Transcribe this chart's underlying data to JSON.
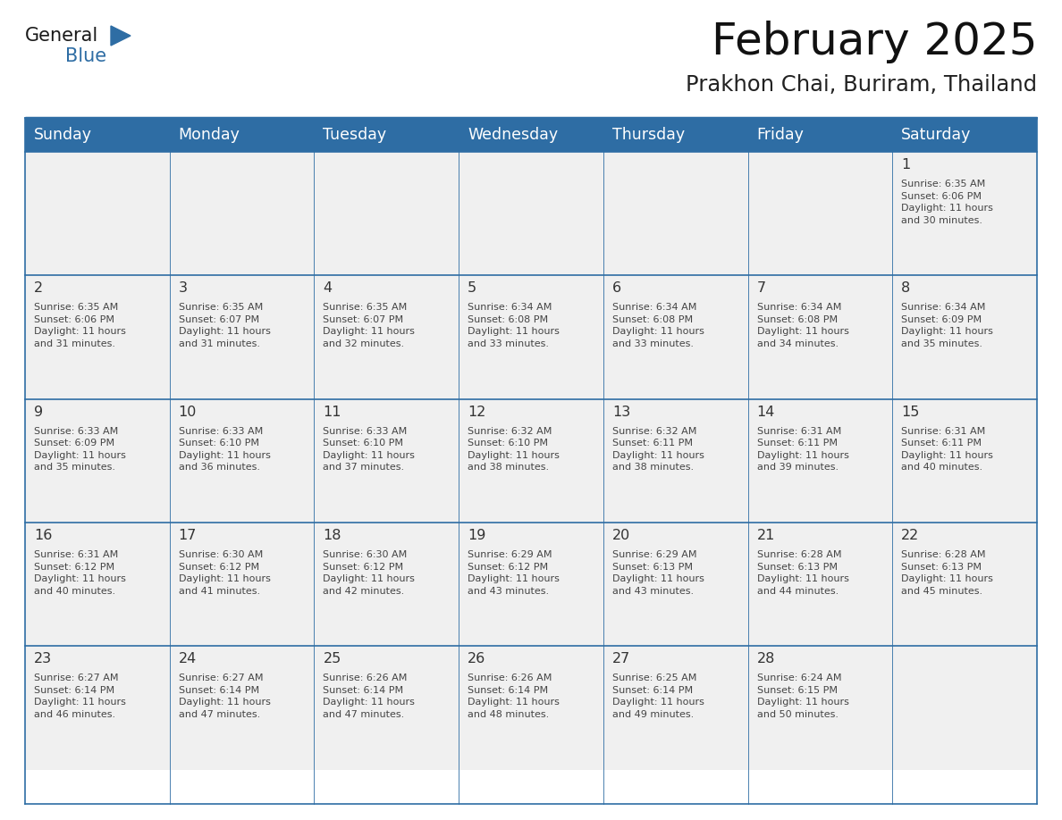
{
  "title": "February 2025",
  "subtitle": "Prakhon Chai, Buriram, Thailand",
  "header_bg": "#2E6DA4",
  "header_text_color": "#FFFFFF",
  "cell_bg": "#F0F0F0",
  "day_number_color": "#333333",
  "info_text_color": "#444444",
  "border_color": "#2E6DA4",
  "sep_line_color": "#2E6DA4",
  "days_of_week": [
    "Sunday",
    "Monday",
    "Tuesday",
    "Wednesday",
    "Thursday",
    "Friday",
    "Saturday"
  ],
  "weeks": [
    [
      {
        "day": "",
        "info": ""
      },
      {
        "day": "",
        "info": ""
      },
      {
        "day": "",
        "info": ""
      },
      {
        "day": "",
        "info": ""
      },
      {
        "day": "",
        "info": ""
      },
      {
        "day": "",
        "info": ""
      },
      {
        "day": "1",
        "info": "Sunrise: 6:35 AM\nSunset: 6:06 PM\nDaylight: 11 hours\nand 30 minutes."
      }
    ],
    [
      {
        "day": "2",
        "info": "Sunrise: 6:35 AM\nSunset: 6:06 PM\nDaylight: 11 hours\nand 31 minutes."
      },
      {
        "day": "3",
        "info": "Sunrise: 6:35 AM\nSunset: 6:07 PM\nDaylight: 11 hours\nand 31 minutes."
      },
      {
        "day": "4",
        "info": "Sunrise: 6:35 AM\nSunset: 6:07 PM\nDaylight: 11 hours\nand 32 minutes."
      },
      {
        "day": "5",
        "info": "Sunrise: 6:34 AM\nSunset: 6:08 PM\nDaylight: 11 hours\nand 33 minutes."
      },
      {
        "day": "6",
        "info": "Sunrise: 6:34 AM\nSunset: 6:08 PM\nDaylight: 11 hours\nand 33 minutes."
      },
      {
        "day": "7",
        "info": "Sunrise: 6:34 AM\nSunset: 6:08 PM\nDaylight: 11 hours\nand 34 minutes."
      },
      {
        "day": "8",
        "info": "Sunrise: 6:34 AM\nSunset: 6:09 PM\nDaylight: 11 hours\nand 35 minutes."
      }
    ],
    [
      {
        "day": "9",
        "info": "Sunrise: 6:33 AM\nSunset: 6:09 PM\nDaylight: 11 hours\nand 35 minutes."
      },
      {
        "day": "10",
        "info": "Sunrise: 6:33 AM\nSunset: 6:10 PM\nDaylight: 11 hours\nand 36 minutes."
      },
      {
        "day": "11",
        "info": "Sunrise: 6:33 AM\nSunset: 6:10 PM\nDaylight: 11 hours\nand 37 minutes."
      },
      {
        "day": "12",
        "info": "Sunrise: 6:32 AM\nSunset: 6:10 PM\nDaylight: 11 hours\nand 38 minutes."
      },
      {
        "day": "13",
        "info": "Sunrise: 6:32 AM\nSunset: 6:11 PM\nDaylight: 11 hours\nand 38 minutes."
      },
      {
        "day": "14",
        "info": "Sunrise: 6:31 AM\nSunset: 6:11 PM\nDaylight: 11 hours\nand 39 minutes."
      },
      {
        "day": "15",
        "info": "Sunrise: 6:31 AM\nSunset: 6:11 PM\nDaylight: 11 hours\nand 40 minutes."
      }
    ],
    [
      {
        "day": "16",
        "info": "Sunrise: 6:31 AM\nSunset: 6:12 PM\nDaylight: 11 hours\nand 40 minutes."
      },
      {
        "day": "17",
        "info": "Sunrise: 6:30 AM\nSunset: 6:12 PM\nDaylight: 11 hours\nand 41 minutes."
      },
      {
        "day": "18",
        "info": "Sunrise: 6:30 AM\nSunset: 6:12 PM\nDaylight: 11 hours\nand 42 minutes."
      },
      {
        "day": "19",
        "info": "Sunrise: 6:29 AM\nSunset: 6:12 PM\nDaylight: 11 hours\nand 43 minutes."
      },
      {
        "day": "20",
        "info": "Sunrise: 6:29 AM\nSunset: 6:13 PM\nDaylight: 11 hours\nand 43 minutes."
      },
      {
        "day": "21",
        "info": "Sunrise: 6:28 AM\nSunset: 6:13 PM\nDaylight: 11 hours\nand 44 minutes."
      },
      {
        "day": "22",
        "info": "Sunrise: 6:28 AM\nSunset: 6:13 PM\nDaylight: 11 hours\nand 45 minutes."
      }
    ],
    [
      {
        "day": "23",
        "info": "Sunrise: 6:27 AM\nSunset: 6:14 PM\nDaylight: 11 hours\nand 46 minutes."
      },
      {
        "day": "24",
        "info": "Sunrise: 6:27 AM\nSunset: 6:14 PM\nDaylight: 11 hours\nand 47 minutes."
      },
      {
        "day": "25",
        "info": "Sunrise: 6:26 AM\nSunset: 6:14 PM\nDaylight: 11 hours\nand 47 minutes."
      },
      {
        "day": "26",
        "info": "Sunrise: 6:26 AM\nSunset: 6:14 PM\nDaylight: 11 hours\nand 48 minutes."
      },
      {
        "day": "27",
        "info": "Sunrise: 6:25 AM\nSunset: 6:14 PM\nDaylight: 11 hours\nand 49 minutes."
      },
      {
        "day": "28",
        "info": "Sunrise: 6:24 AM\nSunset: 6:15 PM\nDaylight: 11 hours\nand 50 minutes."
      },
      {
        "day": "",
        "info": ""
      }
    ]
  ],
  "logo_text_general": "General",
  "logo_text_blue": "Blue",
  "logo_triangle_color": "#2E6DA4",
  "logo_general_color": "#1a1a1a"
}
